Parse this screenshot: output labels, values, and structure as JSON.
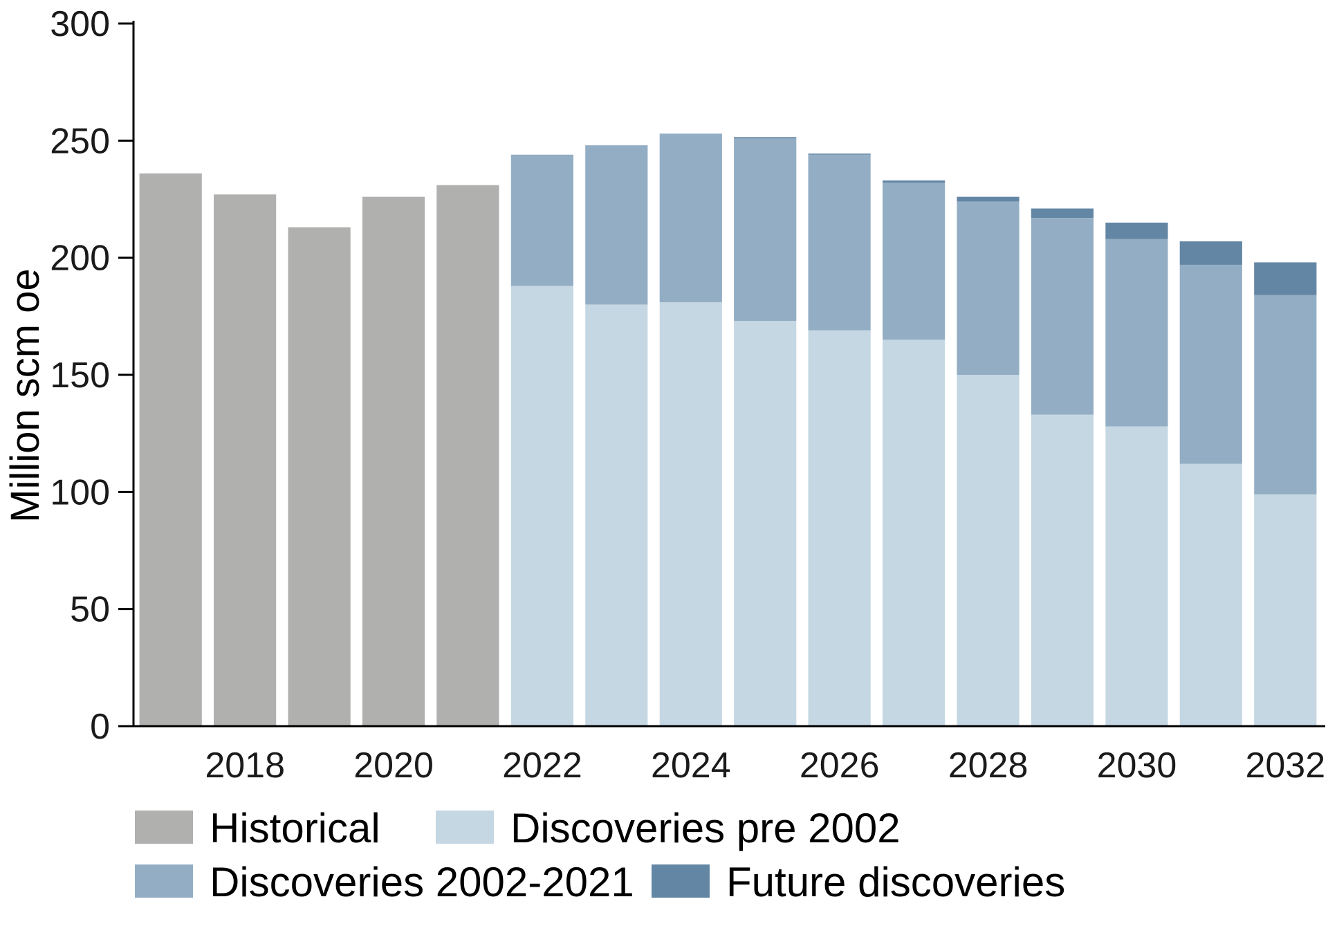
{
  "chart_data": {
    "type": "bar",
    "stacked": true,
    "title": "",
    "xlabel": "",
    "ylabel": "Million scm oe",
    "ylim": [
      0,
      300
    ],
    "yticks": [
      0,
      50,
      100,
      150,
      200,
      250,
      300
    ],
    "grid": false,
    "legend_position": "bottom",
    "categories": [
      "2017",
      "2018",
      "2019",
      "2020",
      "2021",
      "2022",
      "2023",
      "2024",
      "2025",
      "2026",
      "2027",
      "2028",
      "2029",
      "2030",
      "2031",
      "2032"
    ],
    "xtick_labels": [
      "",
      "2018",
      "",
      "2020",
      "",
      "2022",
      "",
      "2024",
      "",
      "2026",
      "",
      "2028",
      "",
      "2030",
      "",
      "2032"
    ],
    "series": [
      {
        "name": "Historical",
        "color": "#b0b0af",
        "values": [
          236,
          227,
          213,
          226,
          231,
          0,
          0,
          0,
          0,
          0,
          0,
          0,
          0,
          0,
          0,
          0
        ]
      },
      {
        "name": "Discoveries pre 2002",
        "color": "#c5d7e3",
        "values": [
          0,
          0,
          0,
          0,
          0,
          188,
          180,
          181,
          173,
          169,
          165,
          150,
          133,
          128,
          112,
          99
        ]
      },
      {
        "name": "Discoveries 2002-2021",
        "color": "#93aec4",
        "values": [
          0,
          0,
          0,
          0,
          0,
          56,
          68,
          72,
          78,
          75,
          67,
          74,
          84,
          80,
          85,
          85
        ]
      },
      {
        "name": "Future discoveries",
        "color": "#6386a5",
        "values": [
          0,
          0,
          0,
          0,
          0,
          0,
          0,
          0,
          0.5,
          0.5,
          1,
          2,
          4,
          7,
          10,
          14
        ]
      }
    ],
    "legend_rows": [
      [
        "Historical",
        "Discoveries pre 2002"
      ],
      [
        "Discoveries 2002-2021",
        "Future discoveries"
      ]
    ]
  }
}
